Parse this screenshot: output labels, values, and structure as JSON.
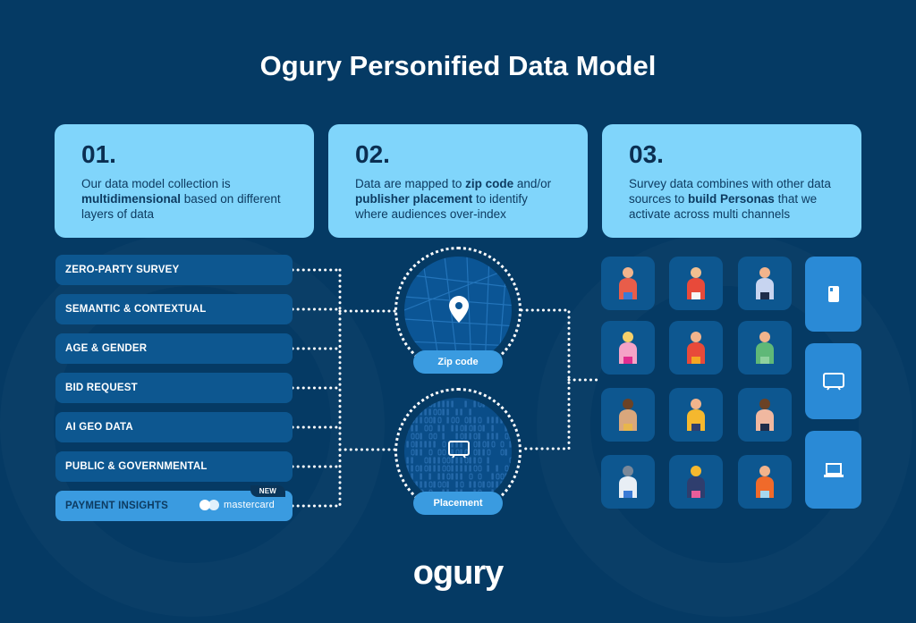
{
  "title": "Ogury Personified Data Model",
  "cards": [
    {
      "num": "01.",
      "parts": [
        [
          "Our data model collection is ",
          ""
        ],
        [
          "multidimensional",
          "b"
        ],
        [
          " based on different layers of data",
          ""
        ]
      ]
    },
    {
      "num": "02.",
      "parts": [
        [
          "Data are mapped to ",
          ""
        ],
        [
          "zip code",
          "b"
        ],
        [
          " and/or ",
          ""
        ],
        [
          "publisher placement",
          "b"
        ],
        [
          " to identify where audiences over-index",
          ""
        ]
      ]
    },
    {
      "num": "03.",
      "parts": [
        [
          "Survey data combines with other data sources to ",
          ""
        ],
        [
          "build Personas",
          "b"
        ],
        [
          " that we activate across multi channels",
          ""
        ]
      ]
    }
  ],
  "sources": [
    "ZERO-PARTY SURVEY",
    "SEMANTIC & CONTEXTUAL",
    "AGE & GENDER",
    "BID REQUEST",
    "AI GEO DATA",
    "PUBLIC & GOVERNMENTAL"
  ],
  "payment": {
    "label": "PAYMENT INSIGHTS",
    "badge": "NEW",
    "partner": "mastercard"
  },
  "zip": {
    "label": "Zip code",
    "icon": "map-pin-icon"
  },
  "placement": {
    "label": "Placement",
    "icon": "tv-icon"
  },
  "personas": [
    "family",
    "vr-user",
    "phone-user",
    "shopper-running",
    "superhero-family",
    "nature-meditation",
    "couple",
    "walker-backpack",
    "drinker",
    "car-driver",
    "shopping-bags",
    "fitness"
  ],
  "devices": [
    "smartphone-icon",
    "tv-icon",
    "laptop-icon"
  ],
  "logo": "ogury",
  "colors": {
    "background": "#053a64",
    "card": "#80d5fb",
    "pill": "#0d5790",
    "accent": "#3a9be0"
  }
}
